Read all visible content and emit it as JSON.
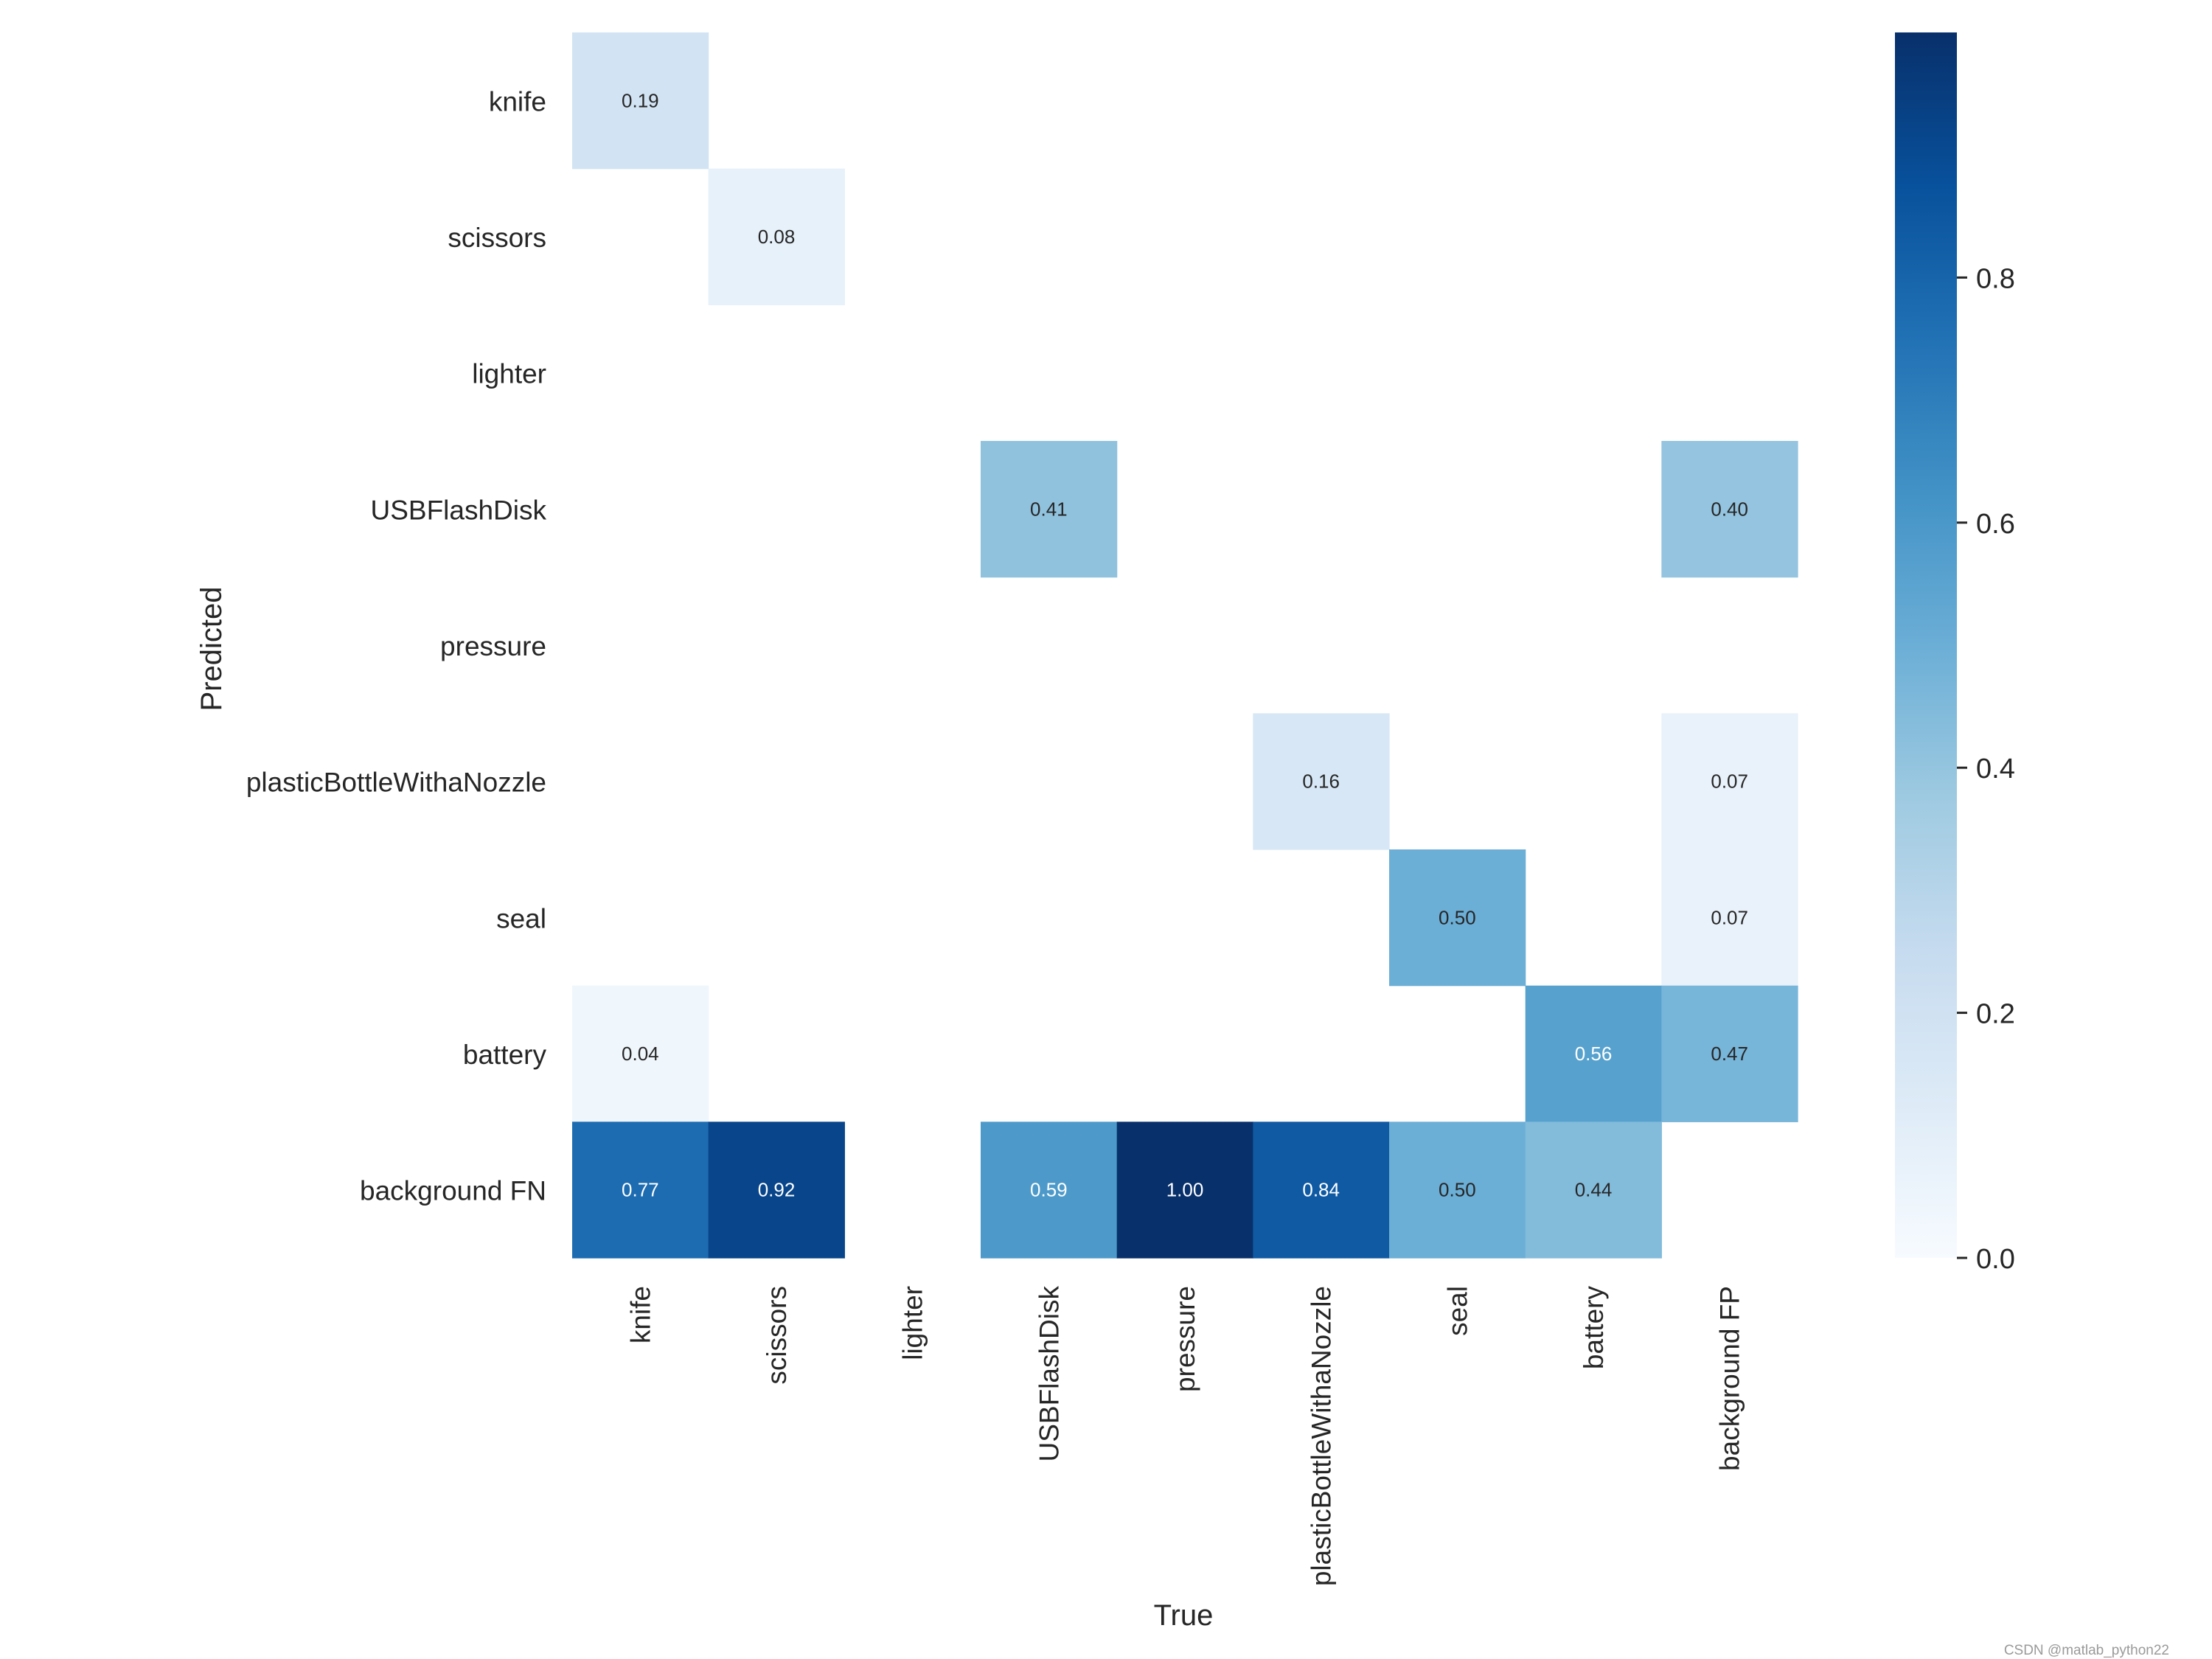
{
  "chart_data": {
    "type": "heatmap",
    "title": "",
    "xlabel": "True",
    "ylabel": "Predicted",
    "x_categories": [
      "knife",
      "scissors",
      "lighter",
      "USBFlashDisk",
      "pressure",
      "plasticBottleWithaNozzle",
      "seal",
      "battery",
      "background FP"
    ],
    "y_categories": [
      "knife",
      "scissors",
      "lighter",
      "USBFlashDisk",
      "pressure",
      "plasticBottleWithaNozzle",
      "seal",
      "battery",
      "background FN"
    ],
    "values": [
      [
        0.19,
        null,
        null,
        null,
        null,
        null,
        null,
        null,
        null
      ],
      [
        null,
        0.08,
        null,
        null,
        null,
        null,
        null,
        null,
        null
      ],
      [
        null,
        null,
        null,
        null,
        null,
        null,
        null,
        null,
        null
      ],
      [
        null,
        null,
        null,
        0.41,
        null,
        null,
        null,
        null,
        0.4
      ],
      [
        null,
        null,
        null,
        null,
        null,
        null,
        null,
        null,
        null
      ],
      [
        null,
        null,
        null,
        null,
        null,
        0.16,
        null,
        null,
        0.07
      ],
      [
        null,
        null,
        null,
        null,
        null,
        null,
        0.5,
        null,
        0.07
      ],
      [
        0.04,
        null,
        null,
        null,
        null,
        null,
        null,
        0.56,
        0.47
      ],
      [
        0.77,
        0.92,
        null,
        0.59,
        1.0,
        0.84,
        0.5,
        0.44,
        null
      ]
    ],
    "value_format": "0.00",
    "colormap": "Blues",
    "colorbar": {
      "range": [
        0.0,
        1.0
      ],
      "ticks": [
        0.0,
        0.2,
        0.4,
        0.6,
        0.8
      ],
      "tick_labels": [
        "0.0",
        "0.2",
        "0.4",
        "0.6",
        "0.8"
      ]
    }
  },
  "watermark": "CSDN @matlab_python22"
}
